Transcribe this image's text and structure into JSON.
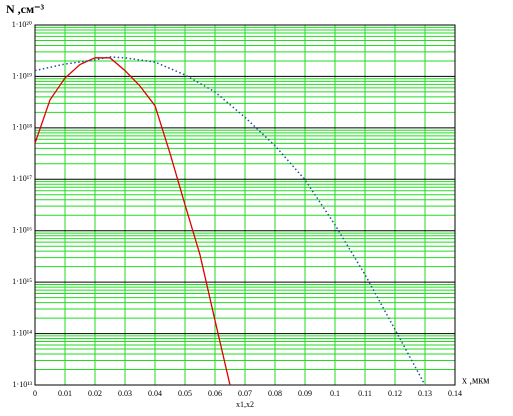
{
  "chart_data": {
    "type": "line",
    "title": "N ,см⁻³",
    "xlabel": "x ,мкм",
    "xname": "x1,x2",
    "log_y": true,
    "grid": true,
    "grid_color": "#22dd22",
    "major_grid_color": "#000000",
    "xlim": [
      0,
      0.14
    ],
    "ylim": [
      10000000000000.0,
      1e+20
    ],
    "xticks": [
      0,
      0.01,
      0.02,
      0.03,
      0.04,
      0.05,
      0.06,
      0.07,
      0.08,
      0.09,
      0.1,
      0.11,
      0.12,
      0.13,
      0.14
    ],
    "yticks": [
      {
        "value": 10000000000000.0,
        "label": "1·10¹³"
      },
      {
        "value": 100000000000000.0,
        "label": "1·10¹⁴"
      },
      {
        "value": 1000000000000000.0,
        "label": "1·10¹⁵"
      },
      {
        "value": 1e+16,
        "label": "1·10¹⁶"
      },
      {
        "value": 1e+17,
        "label": "1·10¹⁷"
      },
      {
        "value": 1e+18,
        "label": "1·10¹⁸"
      },
      {
        "value": 1e+19,
        "label": "1·10¹⁹"
      },
      {
        "value": 1e+20,
        "label": "1·10²⁰"
      }
    ],
    "yminorticks": [
      20000000000000.0,
      30000000000000.0,
      40000000000000.0,
      50000000000000.0,
      60000000000000.0,
      70000000000000.0,
      80000000000000.0,
      90000000000000.0,
      200000000000000.0,
      300000000000000.0,
      400000000000000.0,
      500000000000000.0,
      600000000000000.0,
      700000000000000.0,
      800000000000000.0,
      900000000000000.0,
      2000000000000000.0,
      3000000000000000.0,
      4000000000000000.0,
      5000000000000000.0,
      6000000000000000.0,
      7000000000000000.0,
      8000000000000000.0,
      9000000000000000.0,
      2e+16,
      3e+16,
      4e+16,
      5e+16,
      6e+16,
      7e+16,
      8e+16,
      9e+16,
      2e+17,
      3e+17,
      4e+17,
      5e+17,
      6e+17,
      7e+17,
      8e+17,
      9e+17,
      2e+18,
      3e+18,
      4e+18,
      5e+18,
      6e+18,
      7e+18,
      8e+18,
      9e+18,
      2e+19,
      3e+19,
      4e+19,
      5e+19,
      6e+19,
      7e+19,
      8e+19,
      9e+19
    ],
    "series": [
      {
        "color": "#e00000",
        "dash": false,
        "x": [
          0,
          0.005,
          0.01,
          0.015,
          0.02,
          0.025,
          0.03,
          0.035,
          0.04,
          0.045,
          0.05,
          0.055,
          0.06,
          0.065
        ],
        "values": [
          5e+17,
          3.5e+18,
          9.3e+18,
          1.7e+19,
          2.3e+19,
          2.3e+19,
          1.3e+19,
          6.5e+18,
          2.7e+18,
          3.2e+17,
          3.2e+16,
          3400000000000000.0,
          180000000000000.0,
          10000000000000.0
        ]
      },
      {
        "color": "#1f4fa0",
        "dash": true,
        "x": [
          0,
          0.01,
          0.02,
          0.025,
          0.03,
          0.04,
          0.05,
          0.06,
          0.07,
          0.08,
          0.09,
          0.1,
          0.11,
          0.12,
          0.13
        ],
        "values": [
          1.3e+19,
          1.74e+19,
          2.1e+19,
          2.4e+19,
          2.3e+19,
          1.9e+19,
          1.07e+19,
          5e+18,
          1.6e+18,
          4.5e+17,
          9.8e+16,
          1.3e+16,
          1400000000000000.0,
          120000000000000.0,
          10000000000000.0
        ]
      }
    ]
  }
}
